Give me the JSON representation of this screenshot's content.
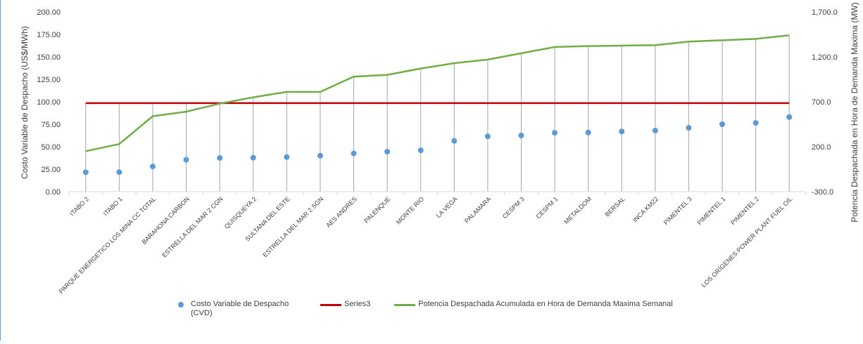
{
  "chart_data": {
    "type": "line",
    "categories": [
      "ITABO 2",
      "ITABO 1",
      "PARQUE ENERGETICO LOS MINA CC TOTAL",
      "BARAHONA CARBON",
      "ESTRELLA DEL MAR 2 CGN",
      "QUISQUEYA 2",
      "SULTANA DEL ESTE",
      "ESTRELLA DEL MAR 2 SGN",
      "AES ANDRES",
      "PALENQUE",
      "MONTE RIO",
      "LA VEGA",
      "PALAMARA",
      "CESPM 3",
      "CESPM 1",
      "METALDOM",
      "BERSAL",
      "INCA KM22",
      "PIMENTEL 3",
      "PIMENTEL 1",
      "PIMENTEL 2",
      "LOS ORÍGENES POWER PLANT FUEL OIL"
    ],
    "series": [
      {
        "name": "Costo Variable de Despacho (CVD)",
        "axis": "left",
        "style": "scatter",
        "color": "#5b9bd5",
        "values": [
          21.5,
          21.7,
          28.0,
          35.5,
          37.5,
          37.8,
          38.5,
          40.0,
          42.5,
          44.5,
          46.0,
          56.5,
          61.5,
          62.5,
          65.5,
          65.8,
          67.0,
          68.0,
          71.0,
          75.0,
          76.5,
          83.0
        ]
      },
      {
        "name": "Series3",
        "axis": "left",
        "style": "line",
        "color": "#c00000",
        "values": [
          98.5,
          98.5,
          98.5,
          98.5,
          98.5,
          98.5,
          98.5,
          98.5,
          98.5,
          98.5,
          98.5,
          98.5,
          98.5,
          98.5,
          98.5,
          98.5,
          98.5,
          98.5,
          98.5,
          98.5,
          98.5,
          98.5
        ]
      },
      {
        "name": "Potencia Despachada Acumulada en Hora de Demanda Maxima Semanal",
        "axis": "right",
        "style": "line",
        "color": "#70ad47",
        "values": [
          150,
          230,
          540,
          590,
          680,
          750,
          810,
          810,
          980,
          1000,
          1070,
          1130,
          1170,
          1240,
          1310,
          1320,
          1325,
          1330,
          1370,
          1385,
          1400,
          1440
        ]
      }
    ],
    "y_left": {
      "label": "Costo Variable de Despacho (US$/MWh)",
      "min": 0,
      "max": 200,
      "step": 25,
      "ticks": [
        "0.00",
        "25.00",
        "50.00",
        "75.00",
        "100.00",
        "125.00",
        "150.00",
        "175.00",
        "200.00"
      ]
    },
    "y_right": {
      "label": "Potencia Despachada en Hora de Demanda Maxima (MW)",
      "min": -300,
      "max": 1700,
      "step": 500,
      "ticks": [
        "-300.0",
        "200.0",
        "700.0",
        "1,200.0",
        "1,700.0"
      ]
    },
    "drop_lines": true,
    "grid": false,
    "legend_position": "bottom"
  },
  "legend": {
    "cvd_label": "Costo Variable de Despacho (CVD)",
    "series3_label": "Series3",
    "potencia_label": "Potencia Despachada Acumulada en Hora de Demanda Maxima Semanal"
  },
  "colors": {
    "cvd": "#5b9bd5",
    "series3": "#c00000",
    "potencia": "#70ad47",
    "drop_line": "#a6a6a6",
    "axis": "#d9d9d9",
    "text": "#404040"
  }
}
